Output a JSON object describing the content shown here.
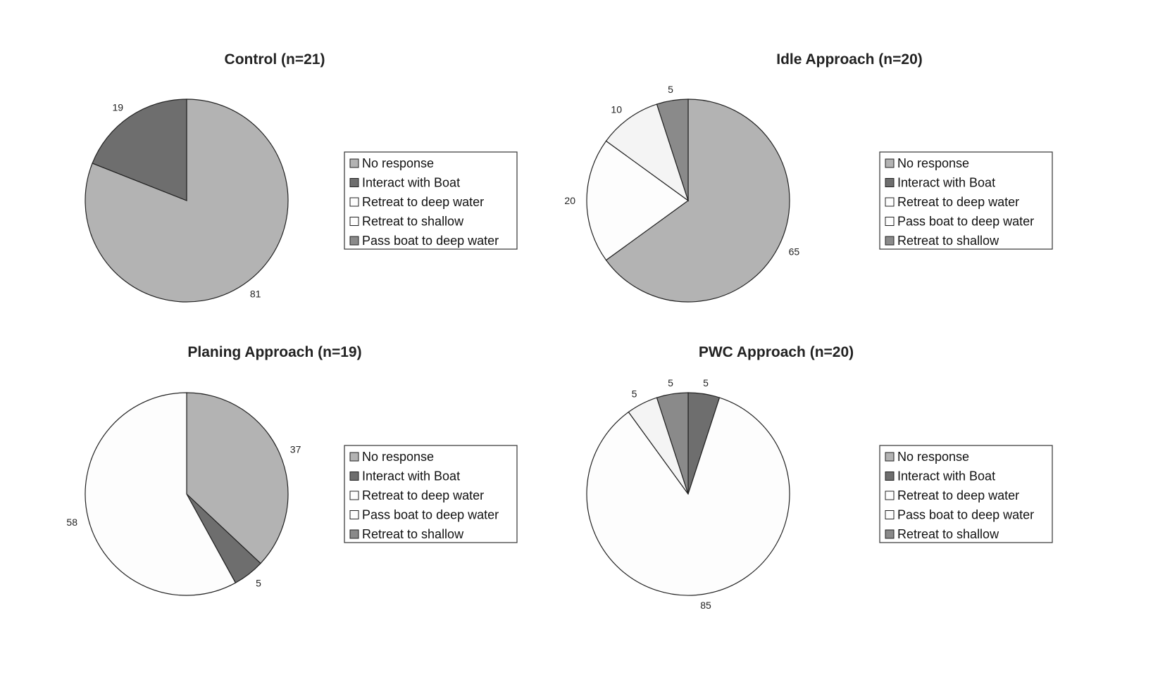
{
  "colors": {
    "no_response": "#b3b3b3",
    "interact_with_boat": "#6e6e6e",
    "retreat_to_deep_water": "#fdfdfd",
    "retreat_to_shallow_control": "#fdfdfd",
    "pass_boat_to_deep_water_control": "#8a8a8a",
    "pass_boat_to_deep_water": "#fdfdfd",
    "retreat_to_shallow": "#8a8a8a"
  },
  "chart_data": [
    {
      "type": "pie",
      "title": "Control (n=21)",
      "legend_placement": "right",
      "slices": [
        {
          "name": "No response",
          "value": 81,
          "label": "81",
          "color": "#b3b3b3"
        },
        {
          "name": "Interact with Boat",
          "value": 19,
          "label": "19",
          "color": "#6e6e6e"
        }
      ],
      "legend": [
        {
          "name": "No response",
          "color": "#b3b3b3"
        },
        {
          "name": "Interact with Boat",
          "color": "#6e6e6e"
        },
        {
          "name": "Retreat to deep water",
          "color": "#fdfdfd"
        },
        {
          "name": "Retreat to shallow",
          "color": "#fdfdfd"
        },
        {
          "name": "Pass boat to deep water",
          "color": "#8a8a8a"
        }
      ]
    },
    {
      "type": "pie",
      "title": "Idle Approach (n=20)",
      "legend_placement": "right",
      "slices": [
        {
          "name": "No response",
          "value": 65,
          "label": "65",
          "color": "#b3b3b3"
        },
        {
          "name": "Retreat to deep water",
          "value": 20,
          "label": "20",
          "color": "#fdfdfd"
        },
        {
          "name": "Pass boat to deep water",
          "value": 10,
          "label": "10",
          "color": "#f4f4f4"
        },
        {
          "name": "Retreat to shallow",
          "value": 5,
          "label": "5",
          "color": "#8a8a8a"
        }
      ],
      "legend": [
        {
          "name": "No response",
          "color": "#b3b3b3"
        },
        {
          "name": "Interact with Boat",
          "color": "#6e6e6e"
        },
        {
          "name": "Retreat to deep water",
          "color": "#fdfdfd"
        },
        {
          "name": "Pass boat to deep water",
          "color": "#fdfdfd"
        },
        {
          "name": "Retreat to shallow",
          "color": "#8a8a8a"
        }
      ]
    },
    {
      "type": "pie",
      "title": "Planing Approach (n=19)",
      "legend_placement": "right",
      "slices": [
        {
          "name": "No response",
          "value": 37,
          "label": "37",
          "color": "#b3b3b3"
        },
        {
          "name": "Interact with Boat",
          "value": 5,
          "label": "5",
          "color": "#6e6e6e"
        },
        {
          "name": "Retreat to deep water",
          "value": 58,
          "label": "58",
          "color": "#fdfdfd"
        }
      ],
      "legend": [
        {
          "name": "No response",
          "color": "#b3b3b3"
        },
        {
          "name": "Interact with Boat",
          "color": "#6e6e6e"
        },
        {
          "name": "Retreat to deep water",
          "color": "#fdfdfd"
        },
        {
          "name": "Pass boat to deep water",
          "color": "#fdfdfd"
        },
        {
          "name": "Retreat to shallow",
          "color": "#8a8a8a"
        }
      ]
    },
    {
      "type": "pie",
      "title": "PWC Approach (n=20)",
      "legend_placement": "right",
      "slices": [
        {
          "name": "Interact with Boat",
          "value": 5,
          "label": "5",
          "color": "#6e6e6e"
        },
        {
          "name": "Retreat to deep water",
          "value": 85,
          "label": "85",
          "color": "#fdfdfd"
        },
        {
          "name": "Pass boat to deep water",
          "value": 5,
          "label": "5",
          "color": "#f4f4f4"
        },
        {
          "name": "Retreat to shallow",
          "value": 5,
          "label": "5",
          "color": "#8a8a8a"
        }
      ],
      "legend": [
        {
          "name": "No response",
          "color": "#b3b3b3"
        },
        {
          "name": "Interact with Boat",
          "color": "#6e6e6e"
        },
        {
          "name": "Retreat to deep water",
          "color": "#fdfdfd"
        },
        {
          "name": "Pass boat to deep water",
          "color": "#fdfdfd"
        },
        {
          "name": "Retreat to shallow",
          "color": "#8a8a8a"
        }
      ]
    }
  ]
}
